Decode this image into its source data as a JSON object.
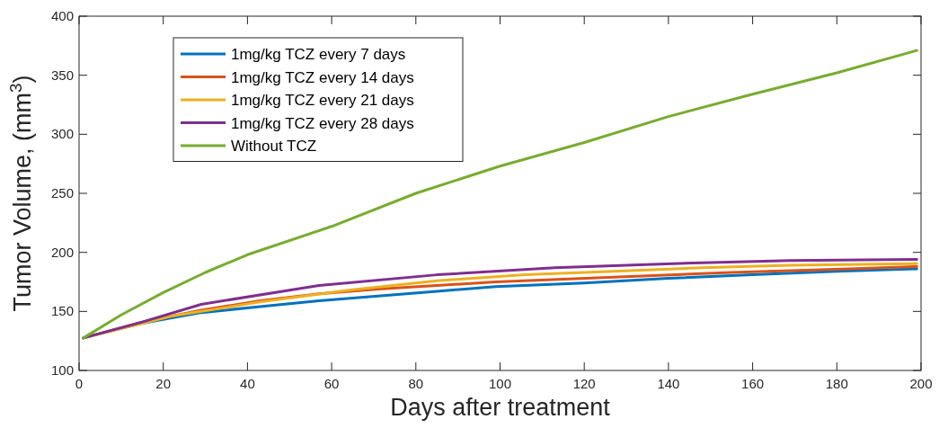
{
  "chart_data": {
    "type": "line",
    "xlabel": "Days after treatment",
    "ylabel": "Tumor Volume, (mm$^{3}$)",
    "xlim": [
      0,
      200
    ],
    "xticks": [
      0,
      20,
      40,
      60,
      80,
      100,
      120,
      140,
      160,
      180,
      200
    ],
    "ylim": [
      100,
      400
    ],
    "yticks": [
      100,
      150,
      200,
      250,
      300,
      350,
      400
    ],
    "legend": "top left",
    "grid": false,
    "marker": "none",
    "line_style": "solid",
    "series": [
      {
        "name": "1mg/kg TCZ every 7 days",
        "color": "#0072bd",
        "x": [
          1,
          8,
          15,
          29,
          43,
          57,
          71,
          85,
          99,
          120,
          140,
          160,
          180,
          199
        ],
        "values": [
          127.5,
          134,
          140,
          149,
          154,
          159,
          163,
          167,
          171,
          174,
          178,
          181,
          184,
          186
        ]
      },
      {
        "name": "1mg/kg TCZ every 14 days",
        "color": "#d95319",
        "x": [
          1,
          15,
          29,
          43,
          57,
          71,
          85,
          99,
          127,
          155,
          183,
          199
        ],
        "values": [
          127.5,
          141,
          151,
          159,
          165,
          169,
          172,
          175,
          179,
          183,
          186,
          188
        ]
      },
      {
        "name": "1mg/kg TCZ every 21 days",
        "color": "#edb120",
        "x": [
          1,
          22,
          43,
          64,
          85,
          106,
          127,
          148,
          169,
          190,
          199
        ],
        "values": [
          127.5,
          146,
          158,
          168,
          176,
          181,
          184,
          187,
          189,
          190,
          190.5
        ]
      },
      {
        "name": "1mg/kg TCZ every 28 days",
        "color": "#7e2f8e",
        "x": [
          1,
          15,
          29,
          57,
          85,
          113,
          141,
          169,
          199
        ],
        "values": [
          127.5,
          141,
          156,
          172,
          181,
          187,
          190.5,
          193,
          194
        ]
      },
      {
        "name": "Without TCZ",
        "color": "#77ac30",
        "x": [
          1,
          10,
          20,
          30,
          40,
          60,
          80,
          100,
          120,
          140,
          160,
          180,
          199
        ],
        "values": [
          127.5,
          147,
          166,
          183,
          198,
          222,
          250,
          273,
          293,
          315,
          334,
          352,
          371
        ]
      }
    ]
  }
}
